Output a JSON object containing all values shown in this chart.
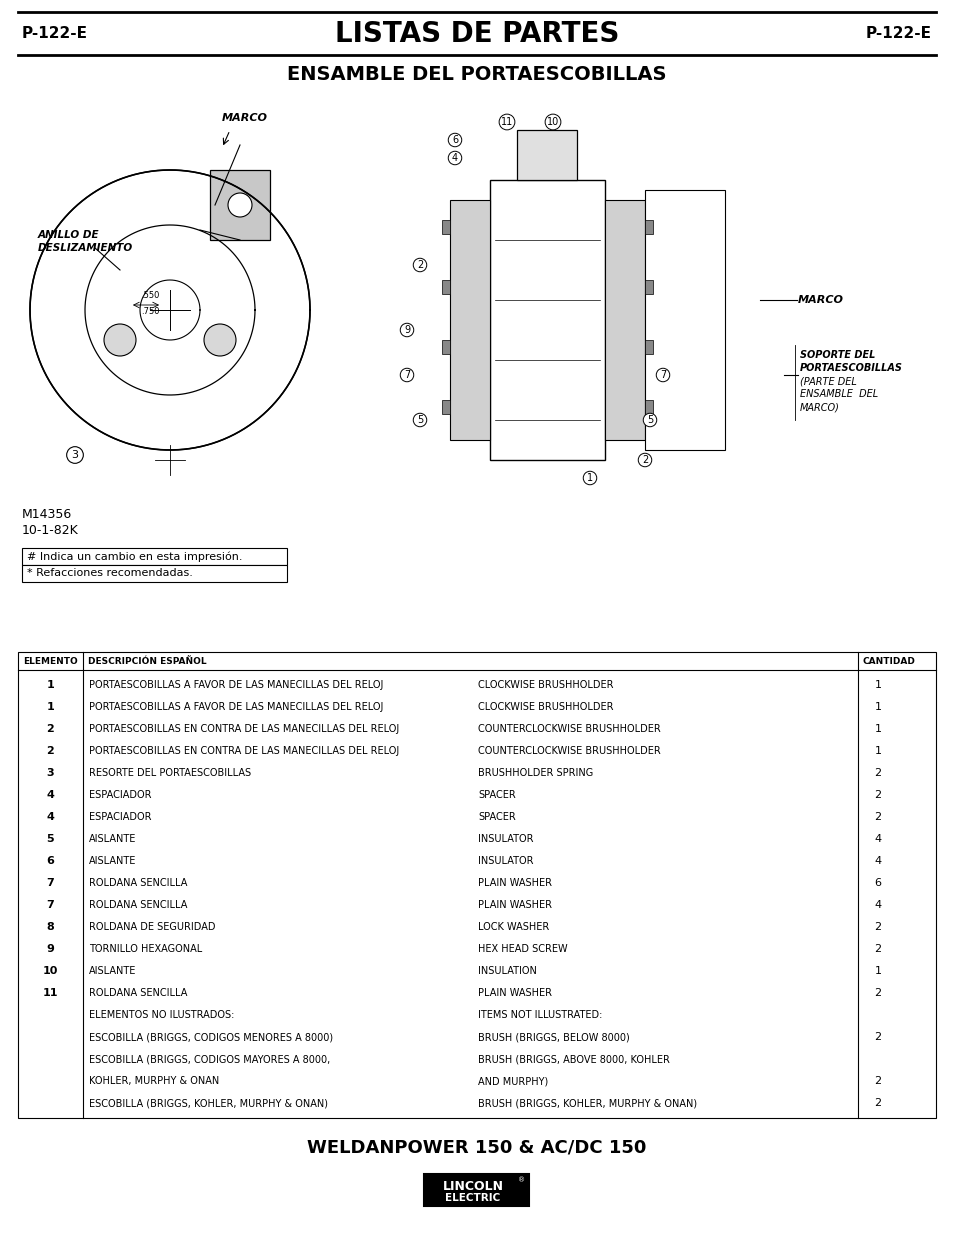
{
  "page_code": "P-122-E",
  "title_main": "LISTAS DE PARTES",
  "title_sub": "ENSAMBLE DEL PORTAESCOBILLAS",
  "code_left": "M14356",
  "code_right": "10-1-82K",
  "legend1": "# Indica un cambio en esta impresión.",
  "legend2": "* Refacciones recomendadas.",
  "table_headers": [
    "ELEMENTO",
    "DESCRIPCIÓN ESPAÑOL",
    "CANTIDAD"
  ],
  "table_rows": [
    [
      "1",
      "PORTAESCOBILLAS A FAVOR DE LAS MANECILLAS DEL RELOJ",
      "CLOCKWISE BRUSHHOLDER",
      "1"
    ],
    [
      "1",
      "PORTAESCOBILLAS A FAVOR DE LAS MANECILLAS DEL RELOJ",
      "CLOCKWISE BRUSHHOLDER",
      "1"
    ],
    [
      "2",
      "PORTAESCOBILLAS EN CONTRA DE LAS MANECILLAS DEL RELOJ",
      "COUNTERCLOCKWISE BRUSHHOLDER",
      "1"
    ],
    [
      "2",
      "PORTAESCOBILLAS EN CONTRA DE LAS MANECILLAS DEL RELOJ",
      "COUNTERCLOCKWISE BRUSHHOLDER",
      "1"
    ],
    [
      "3",
      "RESORTE DEL PORTAESCOBILLAS",
      "BRUSHHOLDER SPRING",
      "2"
    ],
    [
      "4",
      "ESPACIADOR",
      "SPACER",
      "2"
    ],
    [
      "4",
      "ESPACIADOR",
      "SPACER",
      "2"
    ],
    [
      "5",
      "AISLANTE",
      "INSULATOR",
      "4"
    ],
    [
      "6",
      "AISLANTE",
      "INSULATOR",
      "4"
    ],
    [
      "7",
      "ROLDANA SENCILLA",
      "PLAIN WASHER",
      "6"
    ],
    [
      "7",
      "ROLDANA SENCILLA",
      "PLAIN WASHER",
      "4"
    ],
    [
      "8",
      "ROLDANA DE SEGURIDAD",
      "LOCK WASHER",
      "2"
    ],
    [
      "9",
      "TORNILLO HEXAGONAL",
      "HEX HEAD SCREW",
      "2"
    ],
    [
      "10",
      "AISLANTE",
      "INSULATION",
      "1"
    ],
    [
      "11",
      "ROLDANA SENCILLA",
      "PLAIN WASHER",
      "2"
    ],
    [
      "",
      "ELEMENTOS NO ILUSTRADOS:",
      "ITEMS NOT ILLUSTRATED:",
      ""
    ],
    [
      "",
      "ESCOBILLA (BRIGGS, CODIGOS MENORES A 8000)",
      "BRUSH (BRIGGS, BELOW 8000)",
      "2"
    ],
    [
      "",
      "ESCOBILLA (BRIGGS, CODIGOS MAYORES A 8000,",
      "BRUSH (BRIGGS, ABOVE 8000, KOHLER",
      ""
    ],
    [
      "",
      "KOHLER, MURPHY & ONAN",
      "AND MURPHY)",
      "2"
    ],
    [
      "",
      "ESCOBILLA (BRIGGS, KOHLER, MURPHY & ONAN)",
      "BRUSH (BRIGGS, KOHLER, MURPHY & ONAN)",
      "2"
    ]
  ],
  "footer_text": "WELDANPOWER 150 & AC/DC 150",
  "bg_color": "#ffffff",
  "text_color": "#000000"
}
